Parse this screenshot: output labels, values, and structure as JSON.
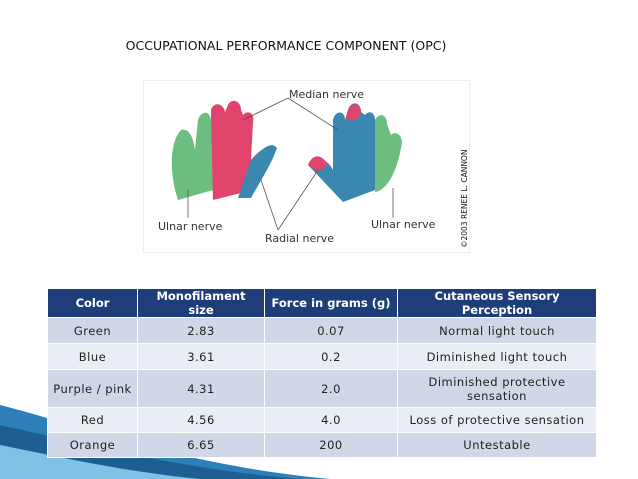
{
  "title": "OCCUPATIONAL PERFORMANCE COMPONENT (OPC)",
  "figure": {
    "labels": [
      "Median nerve",
      "Ulnar nerve",
      "Radial nerve",
      "Ulnar nerve"
    ],
    "credit": "©2003 RENEE L. CANNON"
  },
  "table": {
    "header": [
      "Color",
      "Monofilament size",
      "Force in grams (g)",
      "Cutaneous Sensory Perception"
    ],
    "rows": [
      [
        "Green",
        "2.83",
        "0.07",
        "Normal light touch"
      ],
      [
        "Blue",
        "3.61",
        "0.2",
        "Diminished light touch"
      ],
      [
        "Purple / pink",
        "4.31",
        "2.0",
        "Diminished protective sensation"
      ],
      [
        "Red",
        "4.56",
        "4.0",
        "Loss of protective sensation"
      ],
      [
        "Orange",
        "6.65",
        "200",
        "Untestable"
      ]
    ]
  }
}
